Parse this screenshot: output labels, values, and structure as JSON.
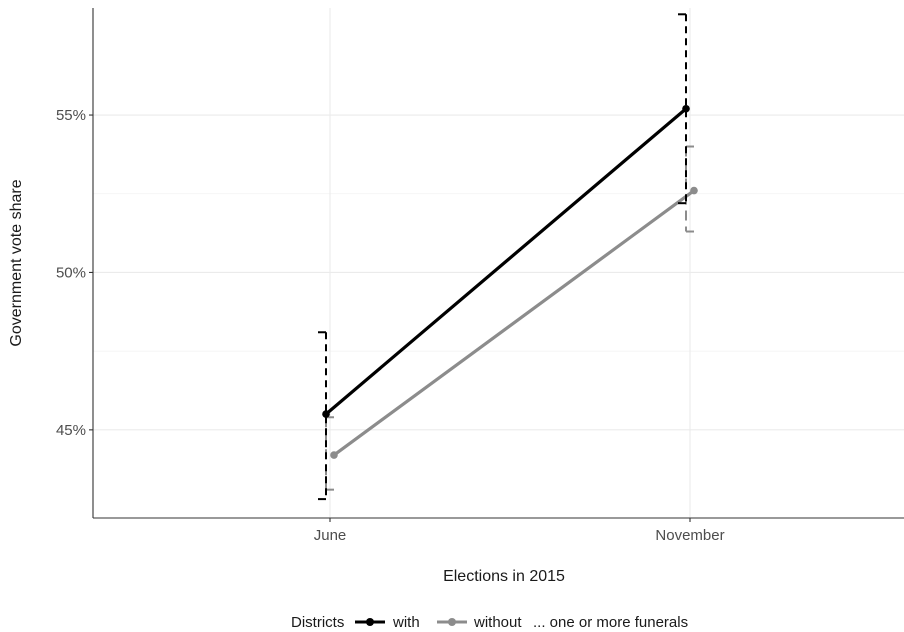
{
  "chart_data": {
    "type": "line",
    "xlabel": "Elections in 2015",
    "ylabel": "Government vote share",
    "categories": [
      "June",
      "November"
    ],
    "ylim": [
      0.422,
      0.584
    ],
    "yticks": [
      0.45,
      0.5,
      0.55
    ],
    "ytick_labels": [
      "45%",
      "50%",
      "55%"
    ],
    "grid": true,
    "legend": {
      "position": "bottom",
      "title": "Districts",
      "suffix": "... one or more funerals"
    },
    "series": [
      {
        "name": "with",
        "color": "#000000",
        "values": [
          0.455,
          0.552
        ],
        "ci_low": [
          0.428,
          0.522
        ],
        "ci_high": [
          0.481,
          0.582
        ]
      },
      {
        "name": "without",
        "color": "#8c8c8c",
        "values": [
          0.442,
          0.526
        ],
        "ci_low": [
          0.431,
          0.513
        ],
        "ci_high": [
          0.454,
          0.54
        ]
      }
    ]
  }
}
